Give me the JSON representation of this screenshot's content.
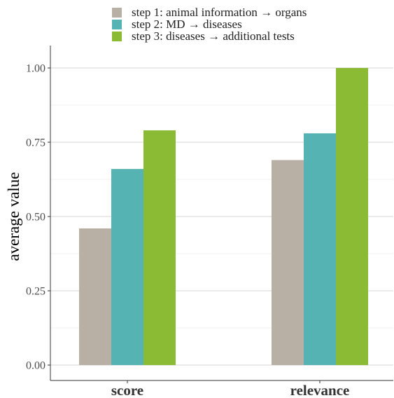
{
  "chart_data": {
    "type": "bar",
    "categories": [
      "score",
      "relevance"
    ],
    "series": [
      {
        "name": "step 1: animal information → organs",
        "values": [
          0.46,
          0.69
        ],
        "color": "#b8b0a4"
      },
      {
        "name": "step 2: MD → diseases",
        "values": [
          0.66,
          0.78
        ],
        "color": "#56b3b4"
      },
      {
        "name": "step 3: diseases → additional tests",
        "values": [
          0.79,
          1.0
        ],
        "color": "#8bbb34"
      }
    ],
    "ylabel": "average value",
    "ylim": [
      0,
      1.05
    ],
    "yticks": [
      "0.00",
      "0.25",
      "0.50",
      "0.75",
      "1.00"
    ],
    "grid": true,
    "legend_position": "top"
  }
}
